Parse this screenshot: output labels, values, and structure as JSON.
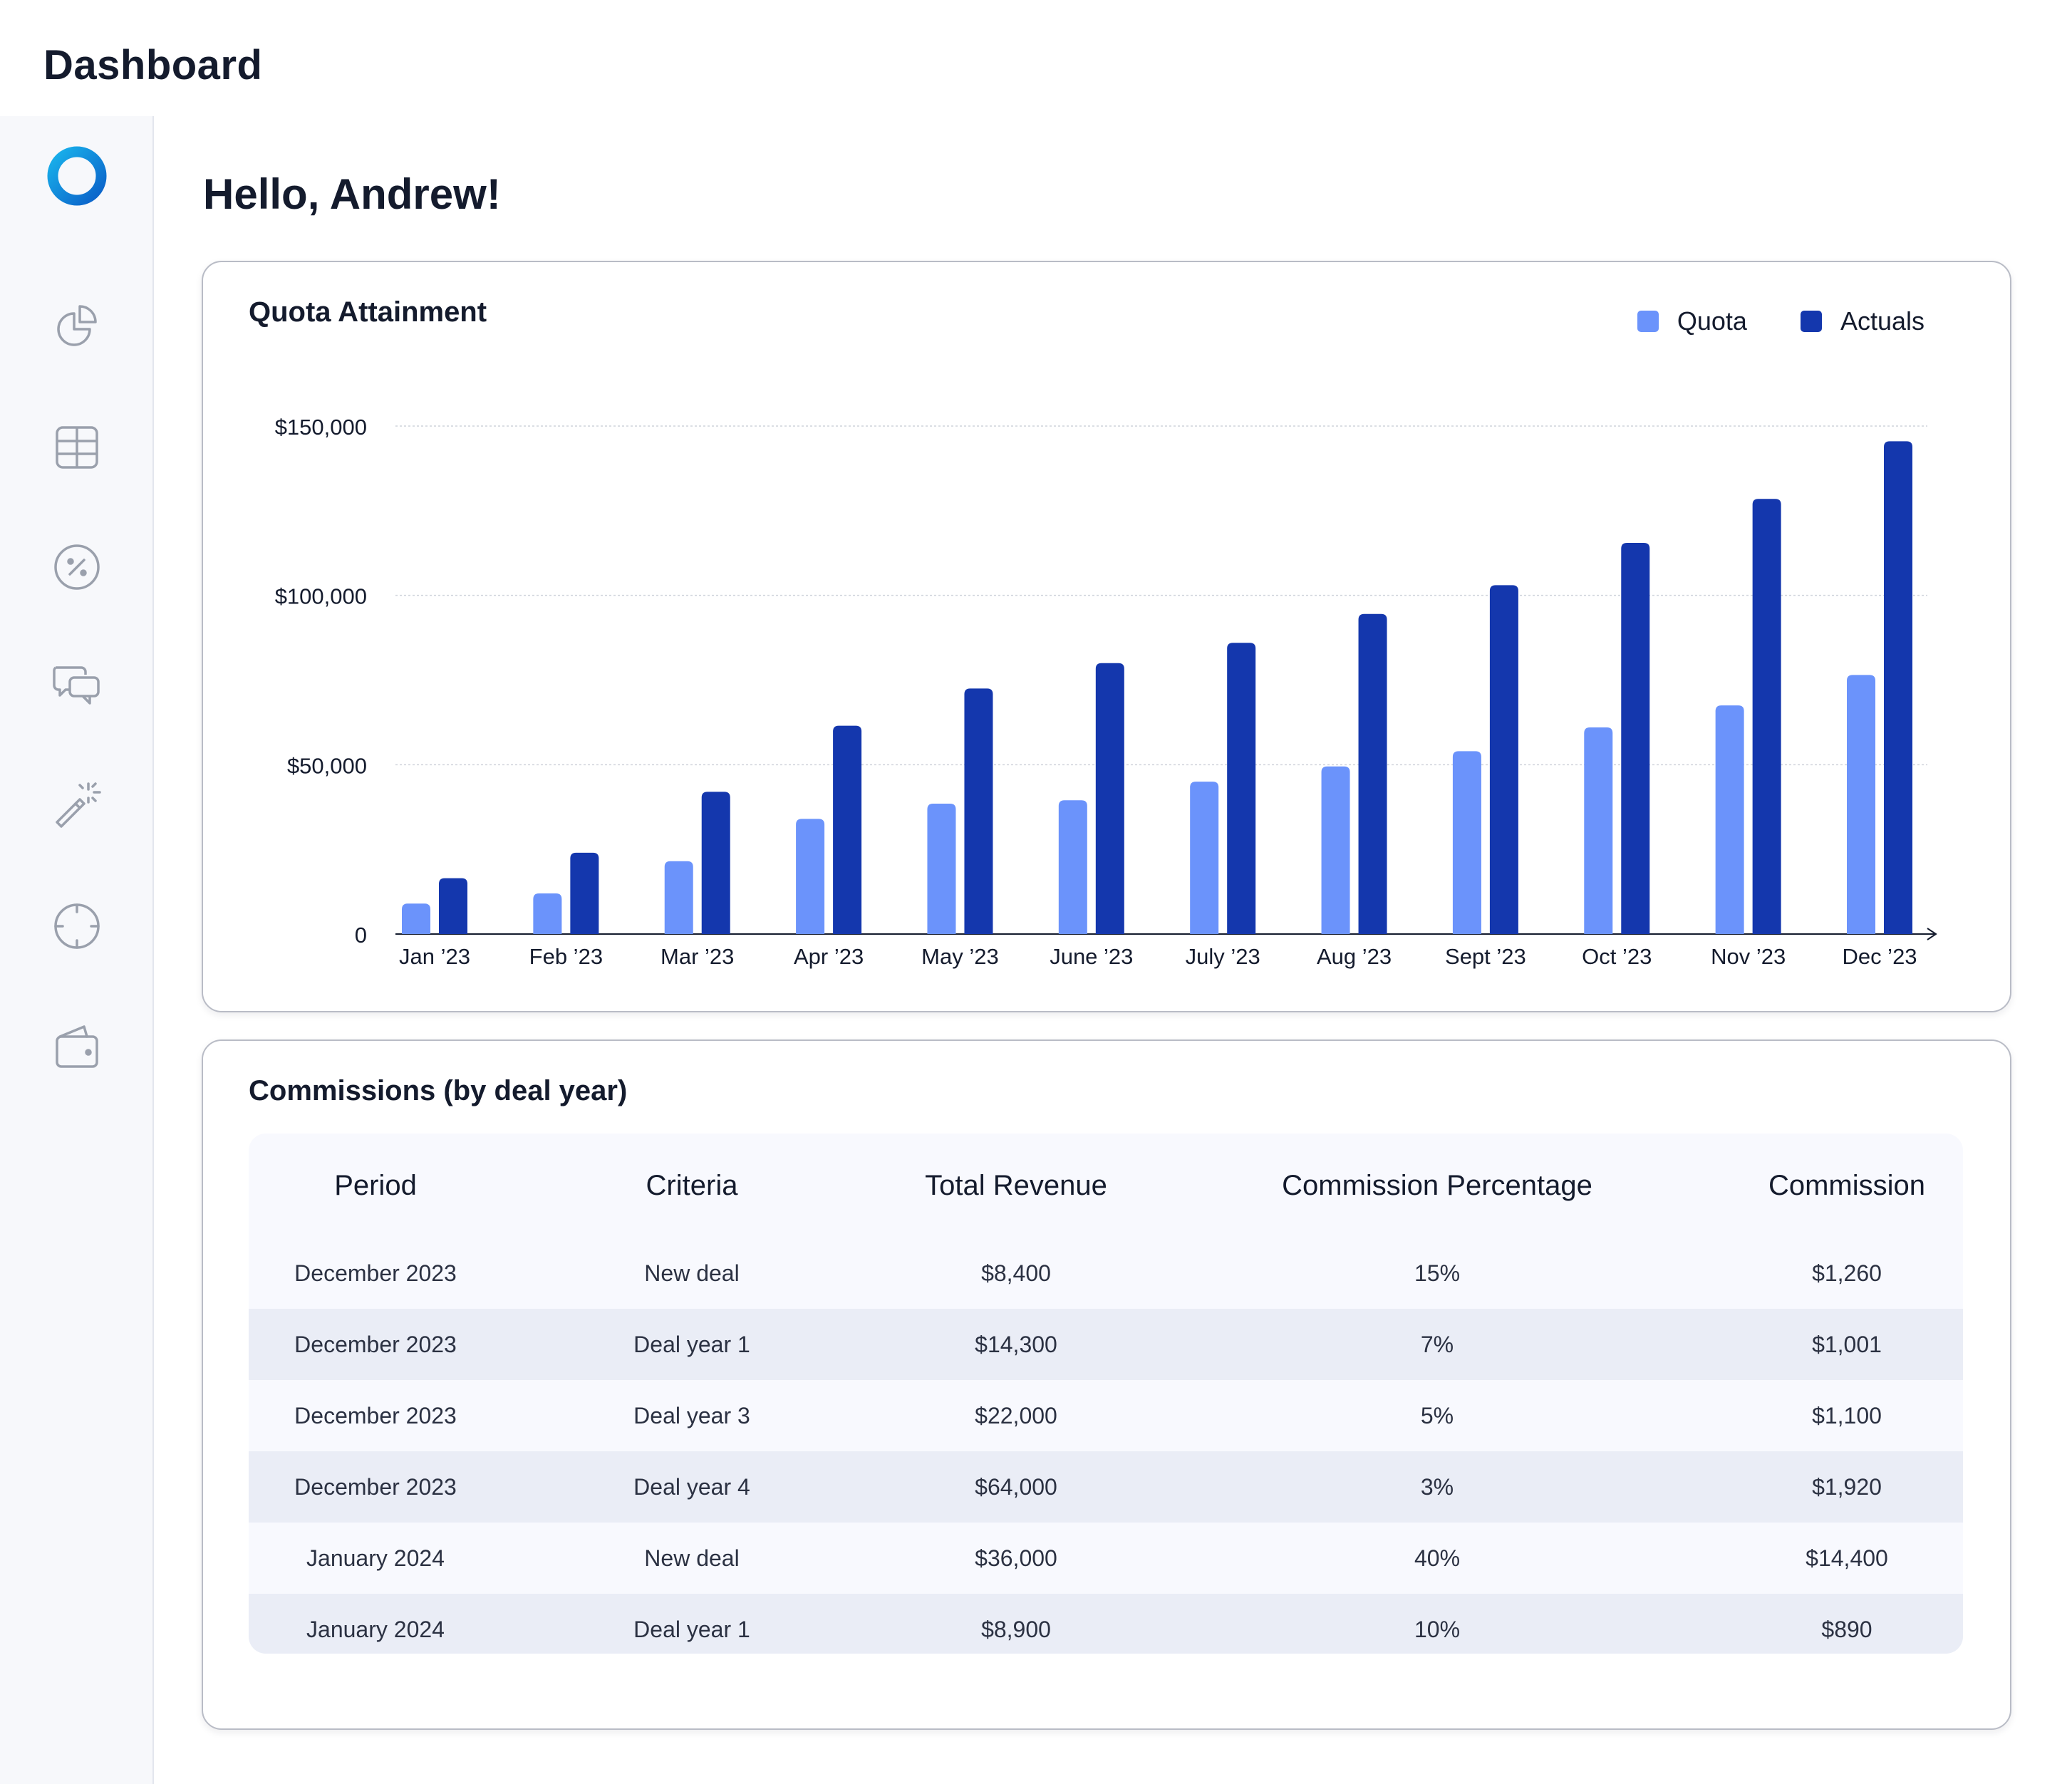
{
  "app": {
    "title": "Dashboard"
  },
  "greeting": "Hello, Andrew!",
  "sidebar": {
    "items": [
      {
        "name": "reports",
        "icon": "pie-chart-icon"
      },
      {
        "name": "tables",
        "icon": "table-icon"
      },
      {
        "name": "commissions",
        "icon": "percent-icon"
      },
      {
        "name": "messages",
        "icon": "chat-icon"
      },
      {
        "name": "magic",
        "icon": "magic-wand-icon"
      },
      {
        "name": "targets",
        "icon": "target-icon"
      },
      {
        "name": "wallet",
        "icon": "wallet-icon"
      }
    ]
  },
  "quota_card": {
    "title": "Quota Attainment",
    "legend": {
      "quota": "Quota",
      "actuals": "Actuals"
    }
  },
  "colors": {
    "quota": "#6b93fb",
    "actuals": "#1437ad",
    "accent": "#0a8fe0"
  },
  "chart_data": {
    "type": "bar",
    "title": "Quota Attainment",
    "categories": [
      "Jan ’23",
      "Feb ’23",
      "Mar ’23",
      "Apr ’23",
      "May ’23",
      "June ’23",
      "July ’23",
      "Aug ’23",
      "Sept ’23",
      "Oct ’23",
      "Nov ’23",
      "Dec ’23"
    ],
    "series": [
      {
        "name": "Quota",
        "values": [
          9000,
          12000,
          21500,
          34000,
          38500,
          39500,
          45000,
          49500,
          54000,
          61000,
          67500,
          76500
        ]
      },
      {
        "name": "Actuals",
        "values": [
          16500,
          24000,
          42000,
          61500,
          72500,
          80000,
          86000,
          94500,
          103000,
          115500,
          128500,
          145500
        ]
      }
    ],
    "y_ticks": [
      {
        "value": 0,
        "label": "0"
      },
      {
        "value": 50000,
        "label": "$50,000"
      },
      {
        "value": 100000,
        "label": "$100,000"
      },
      {
        "value": 150000,
        "label": "$150,000"
      }
    ],
    "ylim": [
      0,
      150000
    ],
    "xlabel": "",
    "ylabel": "",
    "grid": true,
    "legend": "top-right"
  },
  "commissions": {
    "title": "Commissions (by deal year)",
    "columns": [
      "Period",
      "Criteria",
      "Total Revenue",
      "Commission Percentage",
      "Commission"
    ],
    "rows": [
      [
        "December 2023",
        "New deal",
        "$8,400",
        "15%",
        "$1,260"
      ],
      [
        "December 2023",
        "Deal year 1",
        "$14,300",
        "7%",
        "$1,001"
      ],
      [
        "December 2023",
        "Deal year 3",
        "$22,000",
        "5%",
        "$1,100"
      ],
      [
        "December 2023",
        "Deal year 4",
        "$64,000",
        "3%",
        "$1,920"
      ],
      [
        "January 2024",
        "New deal",
        "$36,000",
        "40%",
        "$14,400"
      ],
      [
        "January 2024",
        "Deal year 1",
        "$8,900",
        "10%",
        "$890"
      ]
    ]
  }
}
